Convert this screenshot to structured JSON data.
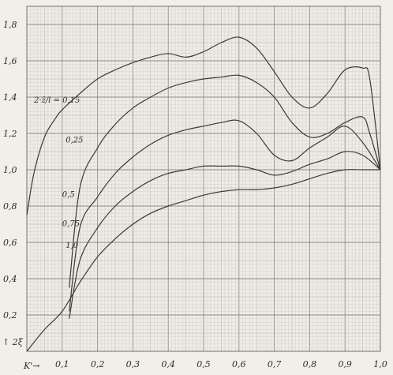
{
  "chart_data": {
    "type": "line",
    "title": "",
    "xlabel": "K'→",
    "ylabel": "↑ 2ξ",
    "xlim": [
      0,
      1.0
    ],
    "ylim": [
      0,
      1.9
    ],
    "xticks": [
      "0,1",
      "0,2",
      "0,3",
      "0,4",
      "0,5",
      "0,6",
      "0,7",
      "0,8",
      "0,9",
      "1,0"
    ],
    "yticks": [
      "0,2",
      "0,4",
      "0,6",
      "0,8",
      "1,0",
      "1,2",
      "1,4",
      "1,6",
      "1,8"
    ],
    "grid": true,
    "series": [
      {
        "name": "2·z̄/l = 0,15",
        "label": "2·z̄/l = 0,15",
        "x": [
          0,
          0.02,
          0.05,
          0.08,
          0.1,
          0.15,
          0.2,
          0.25,
          0.3,
          0.35,
          0.4,
          0.45,
          0.5,
          0.55,
          0.6,
          0.65,
          0.7,
          0.75,
          0.8,
          0.85,
          0.9,
          0.95,
          0.97,
          1.0
        ],
        "y": [
          0.75,
          0.98,
          1.18,
          1.28,
          1.33,
          1.42,
          1.5,
          1.55,
          1.59,
          1.62,
          1.64,
          1.62,
          1.65,
          1.7,
          1.73,
          1.67,
          1.54,
          1.4,
          1.34,
          1.42,
          1.55,
          1.56,
          1.5,
          1.0
        ]
      },
      {
        "name": "0,25",
        "label": "0,25",
        "x": [
          0.12,
          0.15,
          0.2,
          0.25,
          0.3,
          0.35,
          0.4,
          0.45,
          0.5,
          0.55,
          0.6,
          0.65,
          0.7,
          0.75,
          0.8,
          0.85,
          0.9,
          0.95,
          0.97,
          1.0
        ],
        "y": [
          0.35,
          0.9,
          1.12,
          1.25,
          1.34,
          1.4,
          1.45,
          1.48,
          1.5,
          1.51,
          1.52,
          1.48,
          1.4,
          1.26,
          1.18,
          1.2,
          1.26,
          1.29,
          1.2,
          1.0
        ]
      },
      {
        "name": "0,5",
        "label": "0,5",
        "x": [
          0.12,
          0.15,
          0.2,
          0.25,
          0.3,
          0.35,
          0.4,
          0.45,
          0.5,
          0.55,
          0.6,
          0.65,
          0.7,
          0.75,
          0.8,
          0.85,
          0.9,
          0.95,
          1.0
        ],
        "y": [
          0.22,
          0.68,
          0.85,
          0.98,
          1.07,
          1.14,
          1.19,
          1.22,
          1.24,
          1.26,
          1.27,
          1.2,
          1.08,
          1.05,
          1.12,
          1.18,
          1.24,
          1.15,
          1.0
        ]
      },
      {
        "name": "0,75",
        "label": "0,75",
        "x": [
          0.12,
          0.15,
          0.2,
          0.25,
          0.3,
          0.35,
          0.4,
          0.45,
          0.5,
          0.55,
          0.6,
          0.65,
          0.7,
          0.75,
          0.8,
          0.85,
          0.9,
          0.95,
          1.0
        ],
        "y": [
          0.18,
          0.5,
          0.68,
          0.8,
          0.88,
          0.94,
          0.98,
          1.0,
          1.02,
          1.02,
          1.02,
          1.0,
          0.97,
          0.99,
          1.03,
          1.06,
          1.1,
          1.08,
          1.0
        ]
      },
      {
        "name": "1,0",
        "label": "1,0",
        "x": [
          0,
          0.05,
          0.1,
          0.15,
          0.2,
          0.25,
          0.3,
          0.35,
          0.4,
          0.45,
          0.5,
          0.55,
          0.6,
          0.65,
          0.7,
          0.75,
          0.8,
          0.85,
          0.9,
          0.95,
          1.0
        ],
        "y": [
          0.0,
          0.12,
          0.22,
          0.38,
          0.52,
          0.62,
          0.7,
          0.76,
          0.8,
          0.83,
          0.86,
          0.88,
          0.89,
          0.89,
          0.9,
          0.92,
          0.95,
          0.98,
          1.0,
          1.0,
          1.0
        ]
      }
    ]
  }
}
